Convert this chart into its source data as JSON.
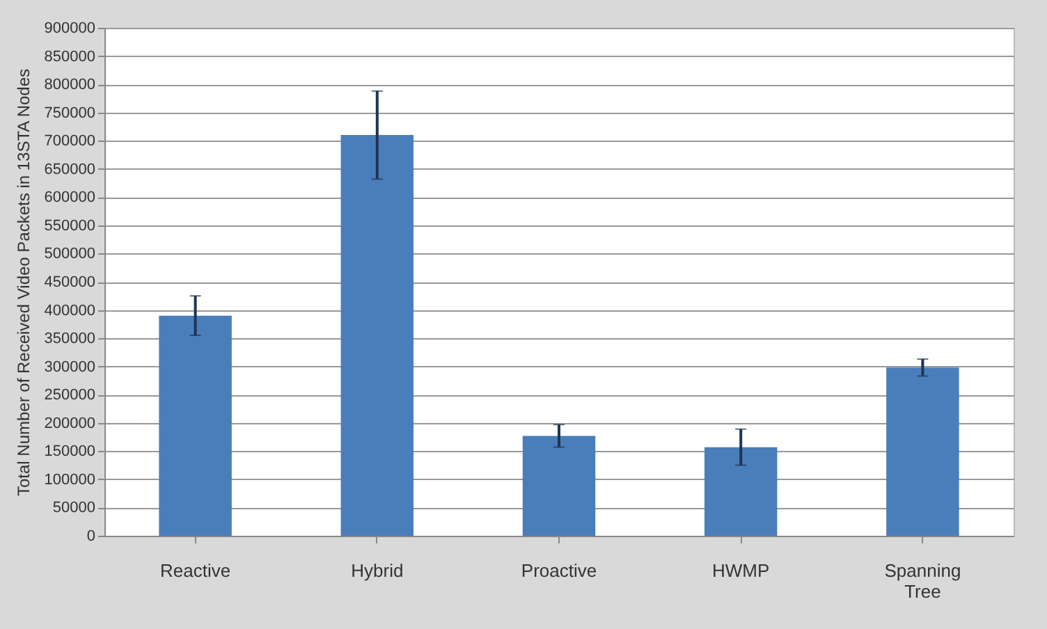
{
  "chart_data": {
    "type": "bar",
    "ylabel": "Total Number of Received Video Packets in 13STA Nodes",
    "categories": [
      "Reactive",
      "Hybrid",
      "Proactive",
      "HWMP",
      "Spanning Tree"
    ],
    "series": [
      {
        "color": "#4a7ebb",
        "values": [
          390000,
          710000,
          177000,
          157000,
          298000
        ],
        "errors": [
          35000,
          78000,
          20000,
          32000,
          15000
        ]
      }
    ],
    "ylim": [
      0,
      900000
    ],
    "yticks": [
      0,
      50000,
      100000,
      150000,
      200000,
      250000,
      300000,
      350000,
      400000,
      450000,
      500000,
      550000,
      600000,
      650000,
      700000,
      750000,
      800000,
      850000,
      900000
    ],
    "grid": "y"
  }
}
